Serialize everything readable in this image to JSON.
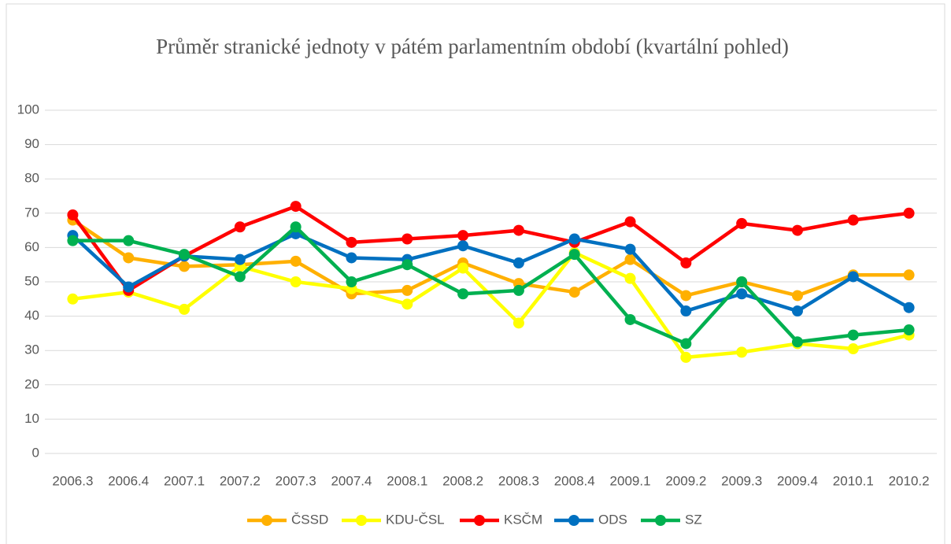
{
  "chart_data": {
    "type": "line",
    "title": "Průměr stranické jednoty v pátém parlamentním období (kvartální pohled)",
    "categories": [
      "2006.3",
      "2006.4",
      "2007.1",
      "2007.2",
      "2007.3",
      "2007.4",
      "2008.1",
      "2008.2",
      "2008.3",
      "2008.4",
      "2009.1",
      "2009.2",
      "2009.3",
      "2009.4",
      "2010.1",
      "2010.2"
    ],
    "series": [
      {
        "name": "ČSSD",
        "color": "#ffb000",
        "values": [
          68,
          57,
          54.5,
          55,
          56,
          46.5,
          47.5,
          55.5,
          49.5,
          47,
          56.5,
          46,
          50,
          46,
          52,
          52
        ]
      },
      {
        "name": "KDU-ČSL",
        "color": "#ffff00",
        "values": [
          45,
          47,
          42,
          54.5,
          50,
          48,
          43.5,
          54,
          38,
          58.5,
          51,
          28,
          29.5,
          32,
          30.5,
          34.5
        ]
      },
      {
        "name": "KSČM",
        "color": "#ff0000",
        "values": [
          69.5,
          47.5,
          57.5,
          66,
          72,
          61.5,
          62.5,
          63.5,
          65,
          61.5,
          67.5,
          55.5,
          67,
          65,
          68,
          70
        ]
      },
      {
        "name": "ODS",
        "color": "#0070c0",
        "values": [
          63.5,
          48.5,
          57.5,
          56.5,
          64,
          57,
          56.5,
          60.5,
          55.5,
          62.5,
          59.5,
          41.5,
          46.5,
          41.5,
          51.5,
          42.5
        ]
      },
      {
        "name": "SZ",
        "color": "#00b050",
        "values": [
          62,
          62,
          58,
          51.5,
          66,
          50,
          55,
          46.5,
          47.5,
          58,
          39,
          32,
          50,
          32.5,
          34.5,
          36
        ]
      }
    ],
    "ylim": [
      0,
      100
    ],
    "yticks": [
      0,
      10,
      20,
      30,
      40,
      50,
      60,
      70,
      80,
      90,
      100
    ],
    "grid": true,
    "legend": "bottom"
  }
}
